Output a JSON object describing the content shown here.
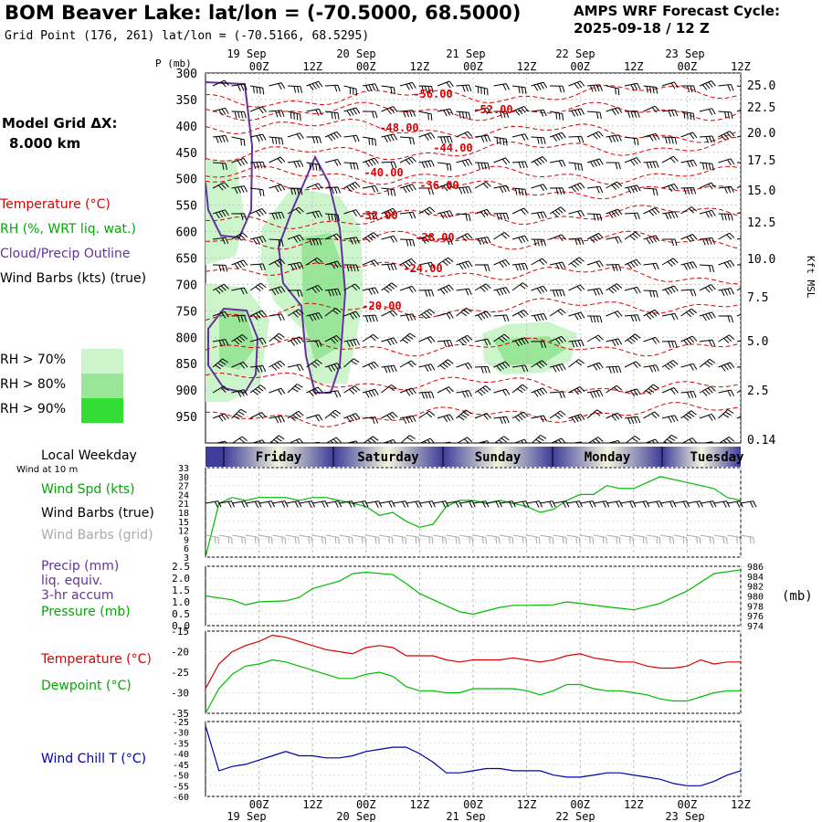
{
  "header": {
    "title": "BOM Beaver Lake:  lat/lon = (-70.5000, 68.5000)",
    "subtitle": "Grid Point (176, 261) lat/lon = (-70.5166, 68.5295)",
    "cycle_line1": "AMPS WRF Forecast Cycle:",
    "cycle_line2": "2025-09-18 / 12  Z"
  },
  "left_panel": {
    "model_grid_label": "Model Grid ΔX:",
    "model_grid_value": "8.000 km",
    "legend_temperature": "Temperature (°C)",
    "legend_rh": "RH (%, WRT liq. wat.)",
    "legend_cloud": "Cloud/Precip Outline",
    "legend_wind": "Wind Barbs (kts) (true)",
    "rh_70": "RH > 70%",
    "rh_80": "RH > 80%",
    "rh_90": "RH > 90%",
    "local_weekday": "Local Weekday",
    "wind_at": "Wind at 10 m",
    "wind_spd": "Wind Spd (kts)",
    "wind_barbs_true": "Wind Barbs (true)",
    "wind_barbs_grid": "Wind Barbs (grid)",
    "precip_1": "Precip (mm)",
    "precip_2": "liq. equiv.",
    "precip_3": "3-hr accum",
    "pressure": "Pressure (mb)",
    "temperature": "Temperature (°C)",
    "dewpoint": "Dewpoint (°C)",
    "wind_chill": "Wind Chill T (°C)"
  },
  "colors": {
    "temperature": "#dd0000",
    "green": "#00bb00",
    "cloud": "#663399",
    "grid_barb": "#aaaaaa",
    "wind_chill": "#0000aa",
    "rh70": "#ccf5cc",
    "rh80": "#99e699",
    "rh90": "#33dd33"
  },
  "chart_data": [
    {
      "type": "line",
      "title": "Vertical cross-section",
      "p_axis_label": "P (mb)",
      "pressure_levels": [
        300,
        350,
        400,
        450,
        500,
        550,
        600,
        650,
        700,
        750,
        800,
        850,
        900,
        950
      ],
      "height_labels": [
        "25.0",
        "22.5",
        "20.0",
        "17.5",
        "15.0",
        "12.5",
        "10.0",
        "7.5",
        "5.0",
        "2.5",
        "0.14"
      ],
      "height_axis_label": "Kft MSL",
      "time_ticks": [
        "00Z",
        "12Z",
        "00Z",
        "12Z",
        "00Z",
        "12Z",
        "00Z",
        "12Z",
        "00Z",
        "12Z"
      ],
      "date_labels": [
        "19 Sep",
        "20 Sep",
        "21 Sep",
        "22 Sep",
        "23 Sep"
      ],
      "temperature_contour_labels": [
        "-56.00",
        "-52.00",
        "-48.00",
        "-44.00",
        "-40.00",
        "-36.00",
        "-32.00",
        "-28.00",
        "-24.00",
        "-20.00"
      ]
    },
    {
      "type": "table",
      "title": "Local Weekday",
      "days": [
        "Friday",
        "Saturday",
        "Sunday",
        "Monday",
        "Tuesday"
      ]
    },
    {
      "type": "line",
      "title": "Wind Spd (kts)",
      "yticks": [
        3,
        6,
        9,
        12,
        15,
        18,
        21,
        24,
        27,
        30,
        33
      ],
      "x_hours": [
        0,
        3,
        6,
        9,
        12,
        15,
        18,
        21,
        24,
        27,
        30,
        33,
        36,
        39,
        42,
        45,
        48,
        51,
        54,
        57,
        60,
        63,
        66,
        69,
        72,
        75,
        78,
        81,
        84,
        87,
        90,
        93,
        96,
        99,
        102,
        105,
        108,
        111,
        114,
        117,
        120
      ],
      "values": [
        3,
        21,
        23,
        22,
        23,
        23,
        23,
        22,
        23,
        23,
        22,
        21,
        20,
        17,
        18,
        15,
        13,
        14,
        20,
        22,
        22,
        21,
        22,
        21,
        20,
        18,
        19,
        22,
        24,
        24,
        27,
        26,
        26,
        28,
        30,
        29,
        28,
        27,
        26,
        23,
        22
      ]
    },
    {
      "type": "line",
      "title": "Precip (mm) / Pressure (mb)",
      "precip_yticks": [
        "0.0",
        "0.5",
        "1.0",
        "1.5",
        "2.0",
        "2.5"
      ],
      "pressure_yticks": [
        974,
        976,
        978,
        980,
        982,
        984,
        986
      ],
      "ylabel_right": "(mb)",
      "x_hours": [
        0,
        6,
        9,
        12,
        18,
        21,
        24,
        30,
        33,
        36,
        42,
        45,
        48,
        54,
        57,
        60,
        66,
        69,
        72,
        78,
        81,
        84,
        90,
        93,
        96,
        102,
        105,
        108,
        114,
        120
      ],
      "pressure": [
        980,
        979.2,
        978.2,
        978.8,
        979,
        979.7,
        981.5,
        983,
        984.5,
        984.8,
        984.3,
        982.5,
        980.5,
        978,
        976.8,
        976.3,
        977.7,
        978.1,
        978.1,
        978.2,
        978.8,
        978.5,
        977.8,
        977.5,
        977.2,
        978.5,
        979.8,
        981,
        984.5,
        985.3
      ],
      "precip": []
    },
    {
      "type": "line",
      "title": "Temperature / Dewpoint (°C)",
      "yticks": [
        -35,
        -30,
        -25,
        -20,
        -15
      ],
      "x_hours": [
        0,
        3,
        6,
        9,
        12,
        15,
        18,
        21,
        24,
        27,
        30,
        33,
        36,
        39,
        42,
        45,
        48,
        51,
        54,
        57,
        60,
        63,
        66,
        69,
        72,
        75,
        78,
        81,
        84,
        87,
        90,
        93,
        96,
        99,
        102,
        105,
        108,
        111,
        114,
        117,
        120
      ],
      "temperature": [
        -29,
        -23,
        -20,
        -18.5,
        -17.5,
        -16,
        -16.5,
        -17.5,
        -18.5,
        -19.5,
        -20,
        -20.5,
        -19,
        -18.5,
        -19,
        -21,
        -21,
        -21,
        -22,
        -22.5,
        -22,
        -22,
        -22,
        -21.5,
        -22,
        -22.5,
        -22,
        -21,
        -20.5,
        -21.5,
        -22,
        -22.5,
        -22.5,
        -23.5,
        -24,
        -24,
        -23.5,
        -22,
        -23,
        -22.5,
        -22.5
      ],
      "dewpoint": [
        -35,
        -29,
        -25.5,
        -23.5,
        -23,
        -22,
        -22.5,
        -23.5,
        -24.5,
        -25.5,
        -26.5,
        -26.5,
        -25.5,
        -25,
        -26,
        -28.5,
        -29.5,
        -29.5,
        -30,
        -30,
        -29,
        -29,
        -29,
        -29,
        -29.5,
        -30.5,
        -29.5,
        -28,
        -28,
        -29,
        -29.5,
        -29.5,
        -30,
        -30.5,
        -31.5,
        -32,
        -32,
        -31,
        -30,
        -29.5,
        -29.5
      ]
    },
    {
      "type": "line",
      "title": "Wind Chill T (°C)",
      "yticks": [
        -60,
        -55,
        -50,
        -45,
        -40,
        -35,
        -30,
        -25
      ],
      "x_hours": [
        0,
        3,
        6,
        9,
        12,
        15,
        18,
        21,
        24,
        27,
        30,
        33,
        36,
        39,
        42,
        45,
        48,
        51,
        54,
        57,
        60,
        63,
        66,
        69,
        72,
        75,
        78,
        81,
        84,
        87,
        90,
        93,
        96,
        99,
        102,
        105,
        108,
        111,
        114,
        117,
        120
      ],
      "values": [
        -27,
        -48,
        -46,
        -45,
        -43,
        -41,
        -39,
        -41,
        -41,
        -42,
        -42,
        -41,
        -39,
        -38,
        -37,
        -37,
        -40,
        -44,
        -49,
        -49,
        -48,
        -47,
        -47,
        -48,
        -48,
        -48,
        -50,
        -51,
        -51,
        -50,
        -49,
        -49,
        -50,
        -51,
        -52,
        -54,
        -55,
        -55,
        -53,
        -50,
        -48
      ]
    }
  ]
}
